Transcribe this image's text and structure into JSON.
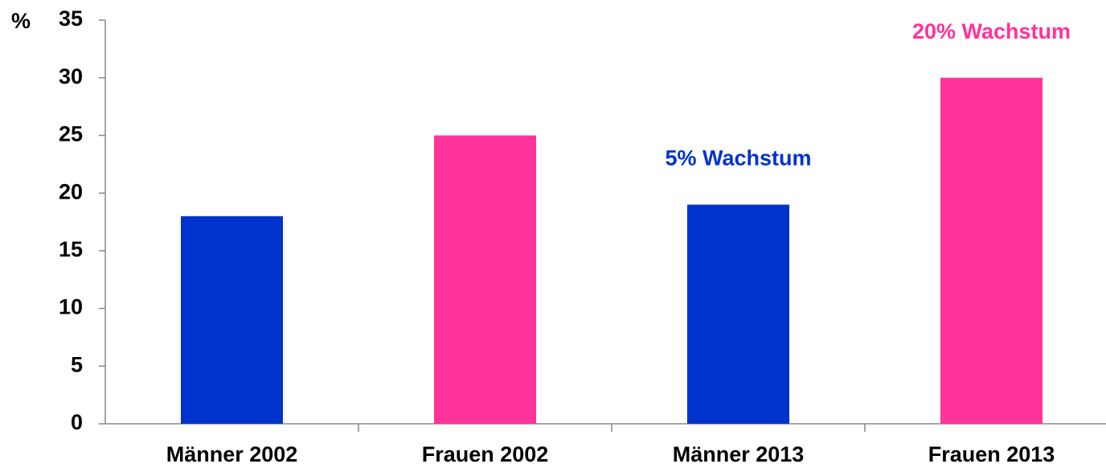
{
  "chart_data": {
    "type": "bar",
    "y_label": "%",
    "categories": [
      "Männer 2002",
      "Frauen 2002",
      "Männer 2013",
      "Frauen 2013"
    ],
    "values": [
      18,
      25,
      19,
      30
    ],
    "colors": [
      "#0033cc",
      "#ff3399",
      "#0033cc",
      "#ff3399"
    ],
    "ylim": [
      0,
      35
    ],
    "yticks": [
      0,
      5,
      10,
      15,
      20,
      25,
      30,
      35
    ],
    "grid": false,
    "annotations": [
      {
        "text": "5% Wachstum",
        "color": "#0033cc"
      },
      {
        "text": "20% Wachstum",
        "color": "#ff3399"
      }
    ]
  }
}
